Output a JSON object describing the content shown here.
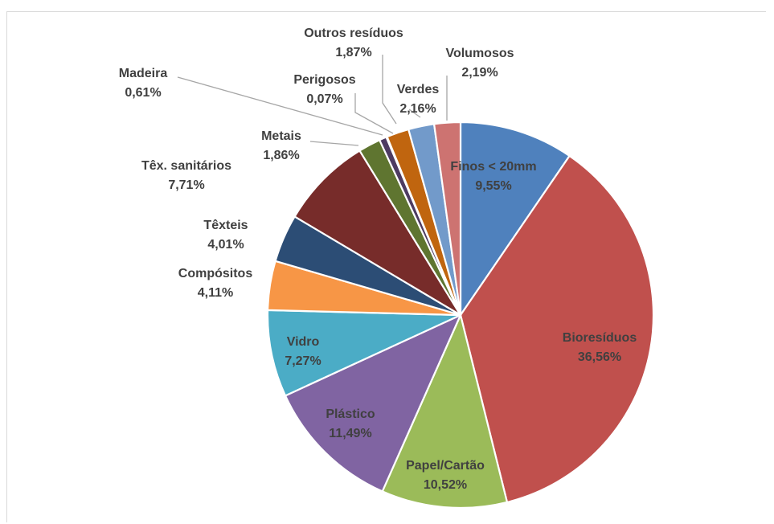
{
  "chart_data": {
    "type": "pie",
    "title": "",
    "slices": [
      {
        "label": "Finos < 20mm",
        "value": 9.55,
        "value_label": "9,55%",
        "color": "#4f81bd"
      },
      {
        "label": "Bioresíduos",
        "value": 36.56,
        "value_label": "36,56%",
        "color": "#c0504d"
      },
      {
        "label": "Papel/Cartão",
        "value": 10.52,
        "value_label": "10,52%",
        "color": "#9bbb59"
      },
      {
        "label": "Plástico",
        "value": 11.49,
        "value_label": "11,49%",
        "color": "#8064a2"
      },
      {
        "label": "Vidro",
        "value": 7.27,
        "value_label": "7,27%",
        "color": "#4bacc6"
      },
      {
        "label": "Compósitos",
        "value": 4.11,
        "value_label": "4,11%",
        "color": "#f79646"
      },
      {
        "label": "Têxteis",
        "value": 4.01,
        "value_label": "4,01%",
        "color": "#2c4d75"
      },
      {
        "label": "Têx. sanitários",
        "value": 7.71,
        "value_label": "7,71%",
        "color": "#772c2a"
      },
      {
        "label": "Metais",
        "value": 1.86,
        "value_label": "1,86%",
        "color": "#5f7530"
      },
      {
        "label": "Madeira",
        "value": 0.61,
        "value_label": "0,61%",
        "color": "#4d3b62"
      },
      {
        "label": "Perigosos",
        "value": 0.07,
        "value_label": "0,07%",
        "color": "#276a7c"
      },
      {
        "label": "Outros resíduos",
        "value": 1.87,
        "value_label": "1,87%",
        "color": "#c0650f"
      },
      {
        "label": "Verdes",
        "value": 2.16,
        "value_label": "2,16%",
        "color": "#729aca"
      },
      {
        "label": "Volumosos",
        "value": 2.19,
        "value_label": "2,19%",
        "color": "#cd7371"
      }
    ],
    "legend": "none",
    "data_labels": "category name and percentage"
  }
}
